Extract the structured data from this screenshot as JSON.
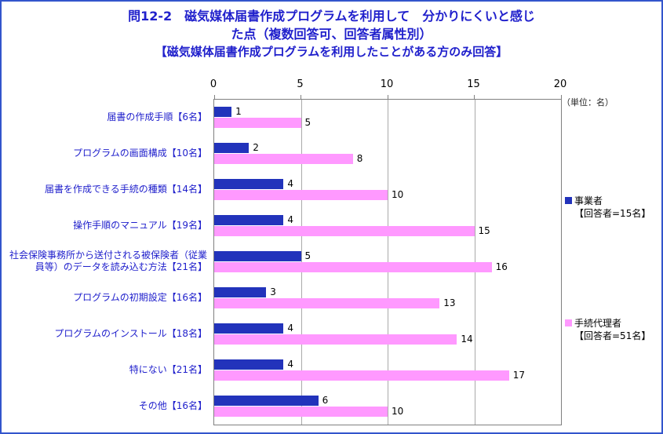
{
  "title": {
    "line1": "問12-2　磁気媒体届書作成プログラムを利用して　分かりにくいと感じ",
    "line2": "た点（複数回答可、回答者属性別）",
    "line3": "【磁気媒体届書作成プログラムを利用したことがある方のみ回答】"
  },
  "unit_label": "（単位：名）",
  "colors": {
    "frame_border": "#3355CC",
    "title_text": "#2020CC",
    "business_bar": "#2233BB",
    "agent_bar": "#FF99FF"
  },
  "chart_data": {
    "type": "bar",
    "orientation": "horizontal",
    "title": "問12-2　磁気媒体届書作成プログラムを利用して　分かりにくいと感じた点（複数回答可、回答者属性別）【磁気媒体届書作成プログラムを利用したことがある方のみ回答】",
    "unit": "（単位：名）",
    "xlim": [
      0,
      20
    ],
    "xticks": [
      0,
      5,
      10,
      15,
      20
    ],
    "grid": true,
    "legend_position": "right",
    "categories": [
      "届書の作成手順【6名】",
      "プログラムの画面構成【10名】",
      "届書を作成できる手続の種類【14名】",
      "操作手順のマニュアル【19名】",
      "社会保険事務所から送付される被保険者（従業員等）のデータを読み込む方法【21名】",
      "プログラムの初期設定【16名】",
      "プログラムのインストール【18名】",
      "特にない【21名】",
      "その他【16名】"
    ],
    "series": [
      {
        "name": "事業者【回答者=15名】",
        "legend_lines": [
          "事業者",
          "【回答者=15名】"
        ],
        "color": "#2233BB",
        "values": [
          1,
          2,
          4,
          4,
          5,
          3,
          4,
          4,
          6
        ]
      },
      {
        "name": "手続代理者【回答者=51名】",
        "legend_lines": [
          "手続代理者",
          "【回答者=51名】"
        ],
        "color": "#FF99FF",
        "values": [
          5,
          8,
          10,
          15,
          16,
          13,
          14,
          17,
          10
        ]
      }
    ]
  }
}
